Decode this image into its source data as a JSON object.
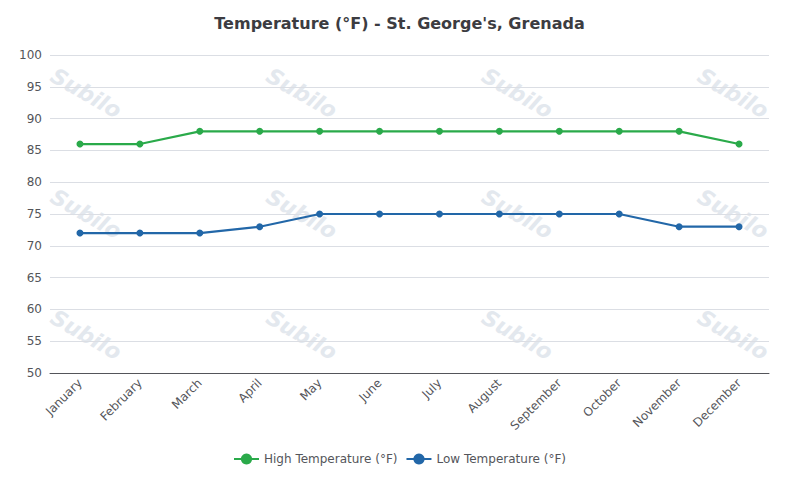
{
  "chart_data": {
    "type": "line",
    "title": "Temperature (°F) - St. George's, Grenada",
    "categories": [
      "January",
      "February",
      "March",
      "April",
      "May",
      "June",
      "July",
      "August",
      "September",
      "October",
      "November",
      "December"
    ],
    "series": [
      {
        "name": "High Temperature (°F)",
        "color": "#2aaa4a",
        "values": [
          86,
          86,
          88,
          88,
          88,
          88,
          88,
          88,
          88,
          88,
          88,
          86
        ]
      },
      {
        "name": "Low Temperature (°F)",
        "color": "#2267a8",
        "values": [
          72,
          72,
          72,
          73,
          75,
          75,
          75,
          75,
          75,
          75,
          73,
          73
        ]
      }
    ],
    "ylim": [
      50,
      100
    ],
    "yticks": [
      50,
      55,
      60,
      65,
      70,
      75,
      80,
      85,
      90,
      95,
      100
    ],
    "grid": true,
    "legend": "bottom",
    "marker": "circle",
    "watermark": "Subilo"
  }
}
